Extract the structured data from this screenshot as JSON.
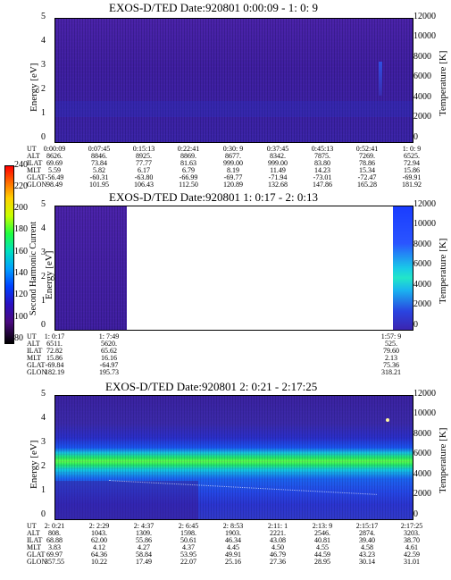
{
  "panels": [
    {
      "title": "EXOS-D/TED   Date:920801  0:00:09 - 1: 0: 9",
      "ylabel": "Energy [eV]",
      "y2label": "Temperature [K]",
      "yticks": [
        "5",
        "4",
        "3",
        "2",
        "1",
        "0"
      ],
      "y2ticks": [
        "12000",
        "10000",
        "8000",
        "6000",
        "4000",
        "2000",
        "0"
      ],
      "rows": [
        {
          "label": "UT",
          "values": [
            "0:00:09",
            "0:07:45",
            "0:15:13",
            "0:22:41",
            "0:30: 9",
            "0:37:45",
            "0:45:13",
            "0:52:41",
            "1: 0: 9"
          ]
        },
        {
          "label": "ALT",
          "values": [
            "8626.",
            "8846.",
            "8925.",
            "8869.",
            "8677.",
            "8342.",
            "7875.",
            "7269.",
            "6525."
          ]
        },
        {
          "label": "ILAT",
          "values": [
            "69.69",
            "73.84",
            "77.77",
            "81.63",
            "999.00",
            "999.00",
            "83.80",
            "78.86",
            "72.94"
          ]
        },
        {
          "label": "MLT",
          "values": [
            "5.59",
            "5.82",
            "6.17",
            "6.79",
            "8.19",
            "11.49",
            "14.23",
            "15.34",
            "15.86"
          ]
        },
        {
          "label": "GLAT",
          "values": [
            "-56.49",
            "-60.31",
            "-63.80",
            "-66.99",
            "-69.77",
            "-71.94",
            "-73.01",
            "-72.47",
            "-69.91"
          ]
        },
        {
          "label": "GLON",
          "values": [
            "98.49",
            "101.95",
            "106.43",
            "112.50",
            "120.89",
            "132.68",
            "147.86",
            "165.28",
            "181.92"
          ]
        }
      ]
    },
    {
      "title": "EXOS-D/TED   Date:920801  1: 0:17 - 2: 0:13",
      "ylabel": "Energy [eV]",
      "y2label": "Temperature [K]",
      "yticks": [
        "5",
        "4",
        "3",
        "2",
        "1",
        "0"
      ],
      "y2ticks": [
        "12000",
        "10000",
        "8000",
        "6000",
        "4000",
        "2000",
        "0"
      ],
      "rows": [
        {
          "label": "UT",
          "values": [
            "1: 0:17",
            "1: 7:49",
            "1:57: 9"
          ]
        },
        {
          "label": "ALT",
          "values": [
            "6511.",
            "5620.",
            "525."
          ]
        },
        {
          "label": "ILAT",
          "values": [
            "72.82",
            "65.62",
            "79.60"
          ]
        },
        {
          "label": "MLT",
          "values": [
            "15.86",
            "16.16",
            "2.13"
          ]
        },
        {
          "label": "GLAT",
          "values": [
            "-69.84",
            "-64.97",
            "75.36"
          ]
        },
        {
          "label": "GLON",
          "values": [
            "182.19",
            "195.73",
            "318.21"
          ]
        }
      ]
    },
    {
      "title": "EXOS-D/TED   Date:920801  2: 0:21 - 2:17:25",
      "ylabel": "Energy [eV]",
      "y2label": "Temperature [K]",
      "yticks": [
        "5",
        "4",
        "3",
        "2",
        "1",
        "0"
      ],
      "y2ticks": [
        "12000",
        "10000",
        "8000",
        "6000",
        "4000",
        "2000",
        "0"
      ],
      "rows": [
        {
          "label": "UT",
          "values": [
            "2: 0:21",
            "2: 2:29",
            "2: 4:37",
            "2: 6:45",
            "2: 8:53",
            "2:11: 1",
            "2:13: 9",
            "2:15:17",
            "2:17:25"
          ]
        },
        {
          "label": "ALT",
          "values": [
            "808.",
            "1043.",
            "1309.",
            "1598.",
            "1903.",
            "2221.",
            "2546.",
            "2874.",
            "3203."
          ]
        },
        {
          "label": "ILAT",
          "values": [
            "68.88",
            "62.00",
            "55.86",
            "50.61",
            "46.34",
            "43.08",
            "40.81",
            "39.40",
            "38.70"
          ]
        },
        {
          "label": "MLT",
          "values": [
            "3.83",
            "4.12",
            "4.27",
            "4.37",
            "4.45",
            "4.50",
            "4.55",
            "4.58",
            "4.61"
          ]
        },
        {
          "label": "GLAT",
          "values": [
            "69.97",
            "64.36",
            "58.84",
            "53.95",
            "49.91",
            "46.79",
            "44.59",
            "43.23",
            "42.59"
          ]
        },
        {
          "label": "GLON",
          "values": [
            "357.55",
            "10.22",
            "17.49",
            "22.07",
            "25.16",
            "27.36",
            "28.95",
            "30.14",
            "31.01"
          ]
        }
      ]
    }
  ],
  "colorbar": {
    "label": "Second Harmonic Current",
    "ticks": [
      "240",
      "220",
      "200",
      "180",
      "160",
      "140",
      "120",
      "100",
      "80"
    ],
    "colors": [
      "#ff0000",
      "#ff6a00",
      "#ffd000",
      "#c8ff00",
      "#20ff40",
      "#00e0c0",
      "#00a0ff",
      "#0040ff",
      "#2a10c0",
      "#4a0a80",
      "#000000"
    ]
  },
  "chart_data": [
    {
      "type": "heatmap",
      "title": "EXOS-D/TED   Date:920801  0:00:09 - 1: 0: 9",
      "xlabel": "UT",
      "ylabel": "Energy [eV]",
      "y2label": "Temperature [K]",
      "ylim": [
        0,
        5
      ],
      "y2lim": [
        0,
        12000
      ],
      "x": [
        "0:00:09",
        "0:07:45",
        "0:15:13",
        "0:22:41",
        "0:30: 9",
        "0:37:45",
        "0:45:13",
        "0:52:41",
        "1: 0: 9"
      ],
      "intensity_range": [
        80,
        240
      ],
      "dominant_value": 100
    },
    {
      "type": "heatmap",
      "title": "EXOS-D/TED   Date:920801  1: 0:17 - 2: 0:13",
      "xlabel": "UT",
      "ylabel": "Energy [eV]",
      "y2label": "Temperature [K]",
      "ylim": [
        0,
        5
      ],
      "y2lim": [
        0,
        12000
      ],
      "x": [
        "1: 0:17",
        "1: 7:49",
        "1:57: 9"
      ],
      "intensity_range": [
        80,
        240
      ]
    },
    {
      "type": "heatmap",
      "title": "EXOS-D/TED   Date:920801  2: 0:21 - 2:17:25",
      "xlabel": "UT",
      "ylabel": "Energy [eV]",
      "y2label": "Temperature [K]",
      "ylim": [
        0,
        5
      ],
      "y2lim": [
        0,
        12000
      ],
      "x": [
        "2: 0:21",
        "2: 2:29",
        "2: 4:37",
        "2: 6:45",
        "2: 8:53",
        "2:11: 1",
        "2:13: 9",
        "2:15:17",
        "2:17:25"
      ],
      "intensity_range": [
        80,
        240
      ],
      "band_energy_eV": 2.3
    }
  ]
}
